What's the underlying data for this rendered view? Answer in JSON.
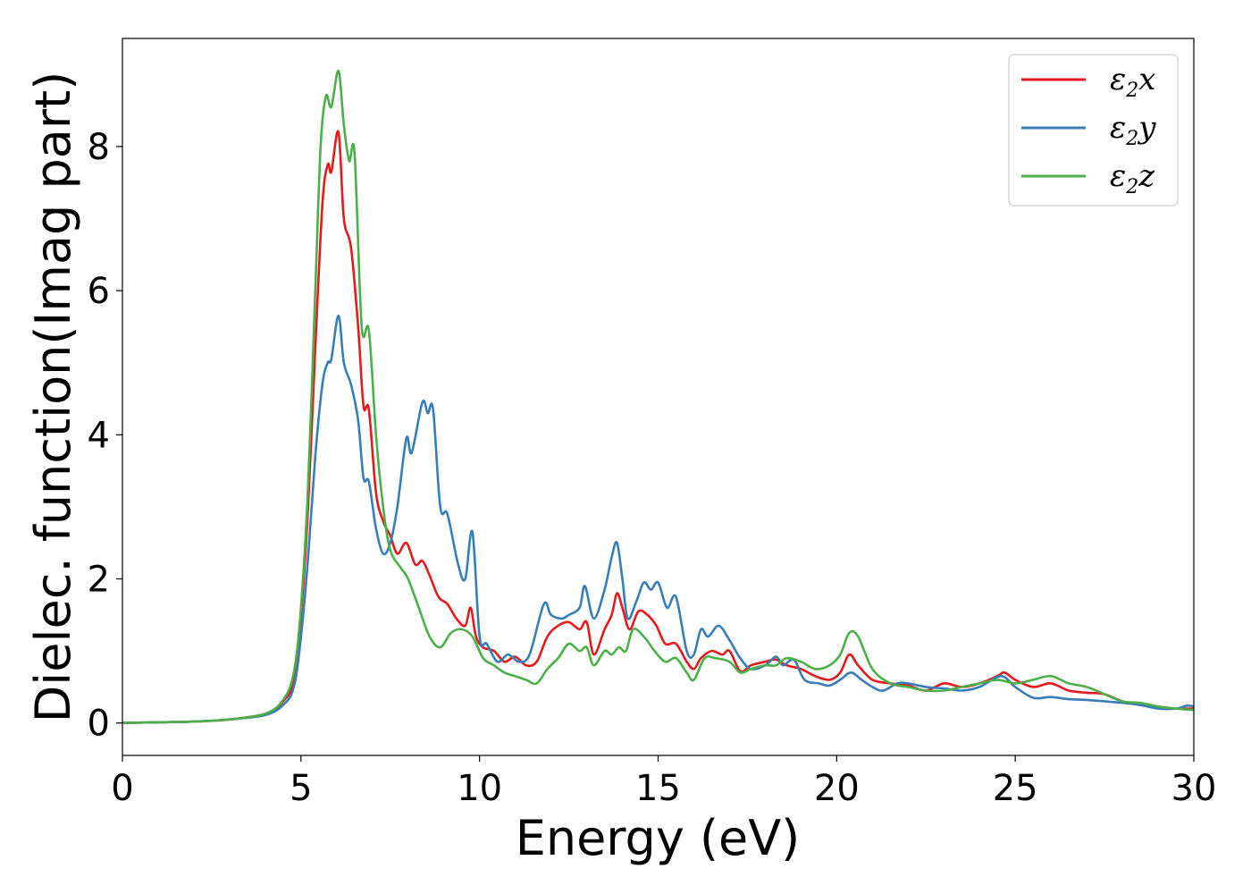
{
  "chart_data": {
    "type": "line",
    "xlabel": "Energy (eV)",
    "ylabel": "Dielec. function(Imag part)",
    "xlim": [
      0,
      30
    ],
    "ylim": [
      -0.45,
      9.5
    ],
    "xticks": [
      0,
      5,
      10,
      15,
      20,
      25,
      30
    ],
    "yticks": [
      0,
      2,
      4,
      6,
      8
    ],
    "grid": false,
    "legend_position": "top-right",
    "series": [
      {
        "name": "ε2x",
        "legend_base": "ε",
        "legend_sub": "2",
        "legend_tail": "x",
        "color": "#e41a1c",
        "points": [
          [
            0,
            0.0
          ],
          [
            1,
            0.01
          ],
          [
            2,
            0.02
          ],
          [
            3,
            0.05
          ],
          [
            4,
            0.13
          ],
          [
            4.5,
            0.3
          ],
          [
            4.8,
            0.6
          ],
          [
            5.0,
            1.5
          ],
          [
            5.2,
            3.0
          ],
          [
            5.4,
            5.2
          ],
          [
            5.6,
            7.2
          ],
          [
            5.75,
            7.75
          ],
          [
            5.85,
            7.65
          ],
          [
            6.05,
            8.2
          ],
          [
            6.2,
            7.0
          ],
          [
            6.4,
            6.6
          ],
          [
            6.6,
            5.5
          ],
          [
            6.75,
            4.4
          ],
          [
            6.9,
            4.35
          ],
          [
            7.1,
            3.2
          ],
          [
            7.3,
            2.8
          ],
          [
            7.5,
            2.6
          ],
          [
            7.7,
            2.35
          ],
          [
            7.95,
            2.5
          ],
          [
            8.2,
            2.2
          ],
          [
            8.4,
            2.25
          ],
          [
            8.6,
            2.05
          ],
          [
            8.85,
            1.75
          ],
          [
            9.1,
            1.65
          ],
          [
            9.35,
            1.45
          ],
          [
            9.6,
            1.35
          ],
          [
            9.75,
            1.6
          ],
          [
            9.9,
            1.2
          ],
          [
            10.1,
            1.05
          ],
          [
            10.4,
            1.0
          ],
          [
            10.7,
            0.85
          ],
          [
            11.0,
            0.92
          ],
          [
            11.3,
            0.8
          ],
          [
            11.6,
            0.85
          ],
          [
            11.9,
            1.2
          ],
          [
            12.2,
            1.35
          ],
          [
            12.5,
            1.4
          ],
          [
            12.8,
            1.3
          ],
          [
            13.0,
            1.4
          ],
          [
            13.2,
            0.95
          ],
          [
            13.5,
            1.3
          ],
          [
            13.7,
            1.5
          ],
          [
            13.85,
            1.8
          ],
          [
            14.0,
            1.6
          ],
          [
            14.2,
            1.3
          ],
          [
            14.45,
            1.55
          ],
          [
            14.7,
            1.5
          ],
          [
            14.95,
            1.35
          ],
          [
            15.2,
            1.1
          ],
          [
            15.5,
            1.1
          ],
          [
            15.8,
            0.85
          ],
          [
            16.0,
            0.75
          ],
          [
            16.2,
            0.9
          ],
          [
            16.5,
            1.0
          ],
          [
            16.8,
            0.95
          ],
          [
            17.0,
            1.0
          ],
          [
            17.3,
            0.72
          ],
          [
            17.6,
            0.8
          ],
          [
            18.0,
            0.85
          ],
          [
            18.3,
            0.88
          ],
          [
            18.6,
            0.8
          ],
          [
            19.0,
            0.75
          ],
          [
            19.4,
            0.65
          ],
          [
            19.8,
            0.6
          ],
          [
            20.1,
            0.7
          ],
          [
            20.35,
            0.95
          ],
          [
            20.6,
            0.8
          ],
          [
            21.0,
            0.6
          ],
          [
            21.5,
            0.55
          ],
          [
            22.0,
            0.52
          ],
          [
            22.5,
            0.45
          ],
          [
            23.0,
            0.55
          ],
          [
            23.5,
            0.5
          ],
          [
            24.0,
            0.55
          ],
          [
            24.5,
            0.65
          ],
          [
            24.7,
            0.7
          ],
          [
            25.0,
            0.6
          ],
          [
            25.5,
            0.5
          ],
          [
            26.0,
            0.55
          ],
          [
            26.5,
            0.45
          ],
          [
            27.0,
            0.42
          ],
          [
            27.5,
            0.4
          ],
          [
            28.0,
            0.3
          ],
          [
            28.5,
            0.25
          ],
          [
            29.0,
            0.22
          ],
          [
            29.5,
            0.2
          ],
          [
            30.0,
            0.2
          ]
        ]
      },
      {
        "name": "ε2y",
        "legend_base": "ε",
        "legend_sub": "2",
        "legend_tail": "y",
        "color": "#377eb8",
        "points": [
          [
            0,
            0.0
          ],
          [
            1,
            0.01
          ],
          [
            2,
            0.02
          ],
          [
            3,
            0.05
          ],
          [
            4,
            0.11
          ],
          [
            4.5,
            0.25
          ],
          [
            4.8,
            0.5
          ],
          [
            5.0,
            1.2
          ],
          [
            5.2,
            2.3
          ],
          [
            5.4,
            3.7
          ],
          [
            5.6,
            4.7
          ],
          [
            5.75,
            5.0
          ],
          [
            5.85,
            5.05
          ],
          [
            6.05,
            5.65
          ],
          [
            6.2,
            5.0
          ],
          [
            6.4,
            4.7
          ],
          [
            6.6,
            4.2
          ],
          [
            6.75,
            3.4
          ],
          [
            6.9,
            3.35
          ],
          [
            7.1,
            2.7
          ],
          [
            7.3,
            2.35
          ],
          [
            7.5,
            2.5
          ],
          [
            7.7,
            3.0
          ],
          [
            7.95,
            3.95
          ],
          [
            8.1,
            3.75
          ],
          [
            8.4,
            4.45
          ],
          [
            8.55,
            4.3
          ],
          [
            8.7,
            4.35
          ],
          [
            8.9,
            3.0
          ],
          [
            9.1,
            2.9
          ],
          [
            9.4,
            2.2
          ],
          [
            9.6,
            2.0
          ],
          [
            9.8,
            2.65
          ],
          [
            10.0,
            1.2
          ],
          [
            10.2,
            1.1
          ],
          [
            10.5,
            0.85
          ],
          [
            10.8,
            0.95
          ],
          [
            11.1,
            0.85
          ],
          [
            11.4,
            0.95
          ],
          [
            11.8,
            1.65
          ],
          [
            12.0,
            1.5
          ],
          [
            12.3,
            1.45
          ],
          [
            12.5,
            1.5
          ],
          [
            12.8,
            1.6
          ],
          [
            12.95,
            1.9
          ],
          [
            13.2,
            1.45
          ],
          [
            13.5,
            1.85
          ],
          [
            13.7,
            2.3
          ],
          [
            13.85,
            2.5
          ],
          [
            14.0,
            2.0
          ],
          [
            14.15,
            1.45
          ],
          [
            14.4,
            1.7
          ],
          [
            14.6,
            1.95
          ],
          [
            14.8,
            1.85
          ],
          [
            15.0,
            1.95
          ],
          [
            15.25,
            1.6
          ],
          [
            15.5,
            1.75
          ],
          [
            15.8,
            1.0
          ],
          [
            16.0,
            0.95
          ],
          [
            16.2,
            1.3
          ],
          [
            16.4,
            1.2
          ],
          [
            16.7,
            1.35
          ],
          [
            17.0,
            1.15
          ],
          [
            17.3,
            0.9
          ],
          [
            17.6,
            0.75
          ],
          [
            18.0,
            0.8
          ],
          [
            18.3,
            0.92
          ],
          [
            18.5,
            0.8
          ],
          [
            18.8,
            0.88
          ],
          [
            19.1,
            0.6
          ],
          [
            19.5,
            0.55
          ],
          [
            19.8,
            0.52
          ],
          [
            20.1,
            0.6
          ],
          [
            20.4,
            0.7
          ],
          [
            20.7,
            0.6
          ],
          [
            21.0,
            0.5
          ],
          [
            21.3,
            0.45
          ],
          [
            21.7,
            0.55
          ],
          [
            22.0,
            0.55
          ],
          [
            22.5,
            0.5
          ],
          [
            23.0,
            0.48
          ],
          [
            23.5,
            0.45
          ],
          [
            24.0,
            0.5
          ],
          [
            24.6,
            0.65
          ],
          [
            25.0,
            0.5
          ],
          [
            25.5,
            0.35
          ],
          [
            26.0,
            0.36
          ],
          [
            26.5,
            0.33
          ],
          [
            27.0,
            0.32
          ],
          [
            27.5,
            0.3
          ],
          [
            28.0,
            0.28
          ],
          [
            28.5,
            0.25
          ],
          [
            29.0,
            0.2
          ],
          [
            29.5,
            0.2
          ],
          [
            29.8,
            0.24
          ],
          [
            30.0,
            0.23
          ]
        ]
      },
      {
        "name": "ε2z",
        "legend_base": "ε",
        "legend_sub": "2",
        "legend_tail": "z",
        "color": "#4daf4a",
        "points": [
          [
            0,
            0.0
          ],
          [
            1,
            0.01
          ],
          [
            2,
            0.02
          ],
          [
            3,
            0.05
          ],
          [
            4,
            0.13
          ],
          [
            4.5,
            0.32
          ],
          [
            4.8,
            0.7
          ],
          [
            5.0,
            1.6
          ],
          [
            5.2,
            3.3
          ],
          [
            5.4,
            6.0
          ],
          [
            5.55,
            8.0
          ],
          [
            5.7,
            8.7
          ],
          [
            5.85,
            8.55
          ],
          [
            6.05,
            9.05
          ],
          [
            6.2,
            8.3
          ],
          [
            6.35,
            7.8
          ],
          [
            6.5,
            7.9
          ],
          [
            6.7,
            5.5
          ],
          [
            6.9,
            5.45
          ],
          [
            7.1,
            4.0
          ],
          [
            7.3,
            3.0
          ],
          [
            7.5,
            2.4
          ],
          [
            7.8,
            2.15
          ],
          [
            8.0,
            2.0
          ],
          [
            8.3,
            1.6
          ],
          [
            8.6,
            1.2
          ],
          [
            8.9,
            1.05
          ],
          [
            9.2,
            1.25
          ],
          [
            9.5,
            1.3
          ],
          [
            9.8,
            1.2
          ],
          [
            10.1,
            0.9
          ],
          [
            10.4,
            0.8
          ],
          [
            10.7,
            0.7
          ],
          [
            11.0,
            0.65
          ],
          [
            11.3,
            0.6
          ],
          [
            11.6,
            0.55
          ],
          [
            11.9,
            0.75
          ],
          [
            12.2,
            0.9
          ],
          [
            12.5,
            1.1
          ],
          [
            12.8,
            1.0
          ],
          [
            13.0,
            1.05
          ],
          [
            13.2,
            0.8
          ],
          [
            13.5,
            1.0
          ],
          [
            13.7,
            0.95
          ],
          [
            13.9,
            1.05
          ],
          [
            14.1,
            1.0
          ],
          [
            14.3,
            1.3
          ],
          [
            14.6,
            1.2
          ],
          [
            14.9,
            1.0
          ],
          [
            15.2,
            0.85
          ],
          [
            15.5,
            0.9
          ],
          [
            15.8,
            0.7
          ],
          [
            16.0,
            0.6
          ],
          [
            16.3,
            0.9
          ],
          [
            16.6,
            0.9
          ],
          [
            17.0,
            0.85
          ],
          [
            17.3,
            0.7
          ],
          [
            17.6,
            0.75
          ],
          [
            18.0,
            0.8
          ],
          [
            18.3,
            0.8
          ],
          [
            18.6,
            0.9
          ],
          [
            19.0,
            0.85
          ],
          [
            19.4,
            0.75
          ],
          [
            19.8,
            0.8
          ],
          [
            20.1,
            0.95
          ],
          [
            20.35,
            1.25
          ],
          [
            20.6,
            1.2
          ],
          [
            21.0,
            0.75
          ],
          [
            21.5,
            0.55
          ],
          [
            22.0,
            0.5
          ],
          [
            22.5,
            0.45
          ],
          [
            23.0,
            0.45
          ],
          [
            23.5,
            0.5
          ],
          [
            24.0,
            0.55
          ],
          [
            24.5,
            0.6
          ],
          [
            25.0,
            0.55
          ],
          [
            25.5,
            0.6
          ],
          [
            26.0,
            0.65
          ],
          [
            26.5,
            0.55
          ],
          [
            27.0,
            0.5
          ],
          [
            27.5,
            0.4
          ],
          [
            28.0,
            0.3
          ],
          [
            28.5,
            0.28
          ],
          [
            29.0,
            0.23
          ],
          [
            29.5,
            0.2
          ],
          [
            30.0,
            0.18
          ]
        ]
      }
    ]
  }
}
